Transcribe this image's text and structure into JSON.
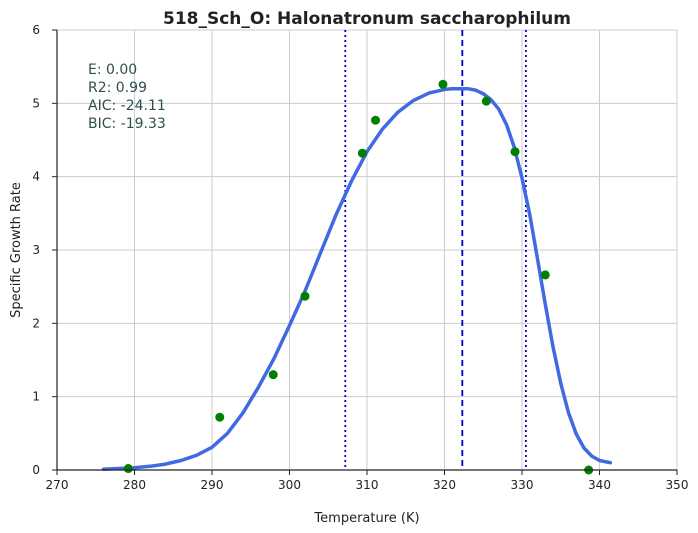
{
  "chart_data": {
    "type": "scatter",
    "title": "518_Sch_O: Halonatronum saccharophilum",
    "xlabel": "Temperature (K)",
    "ylabel": "Specific Growth Rate",
    "xlim": [
      270,
      350
    ],
    "ylim": [
      0,
      6
    ],
    "xticks": [
      "270",
      "280",
      "290",
      "300",
      "310",
      "320",
      "330",
      "340",
      "350"
    ],
    "yticks": [
      "0",
      "1",
      "2",
      "3",
      "4",
      "5",
      "6"
    ],
    "grid": true,
    "points": {
      "color": "#008000",
      "x": [
        279.2,
        291.0,
        297.9,
        302.0,
        309.4,
        311.1,
        319.8,
        325.4,
        329.1,
        333.0,
        338.6
      ],
      "y": [
        0.02,
        0.72,
        1.3,
        2.37,
        4.32,
        4.77,
        5.26,
        5.03,
        4.34,
        2.66,
        0.0
      ]
    },
    "fit_curve": {
      "color": "#4169e1",
      "x": [
        276,
        278,
        280,
        282,
        284,
        286,
        288,
        290,
        292,
        294,
        296,
        298,
        300,
        302,
        304,
        306,
        308,
        310,
        312,
        314,
        316,
        318,
        320,
        321,
        322,
        323,
        324,
        325,
        326,
        327,
        328,
        329,
        330,
        331,
        332,
        333,
        334,
        335,
        336,
        337,
        338,
        339,
        340,
        341.4
      ],
      "y": [
        0.01,
        0.02,
        0.03,
        0.05,
        0.08,
        0.13,
        0.2,
        0.31,
        0.5,
        0.78,
        1.13,
        1.52,
        1.97,
        2.44,
        2.96,
        3.48,
        3.94,
        4.34,
        4.65,
        4.88,
        5.04,
        5.14,
        5.19,
        5.2,
        5.2,
        5.2,
        5.18,
        5.13,
        5.05,
        4.92,
        4.71,
        4.4,
        3.98,
        3.48,
        2.88,
        2.26,
        1.68,
        1.18,
        0.78,
        0.49,
        0.3,
        0.19,
        0.13,
        0.1
      ]
    },
    "vlines": [
      {
        "x": 307.2,
        "style": "dotted",
        "color": "#0000cd"
      },
      {
        "x": 322.3,
        "style": "dashed",
        "color": "#0000cd"
      },
      {
        "x": 330.5,
        "style": "dotted",
        "color": "#0000cd"
      }
    ],
    "annotations": [
      "E:  0.00",
      "R2:  0.99",
      "AIC: -24.11",
      "BIC: -19.33"
    ]
  }
}
